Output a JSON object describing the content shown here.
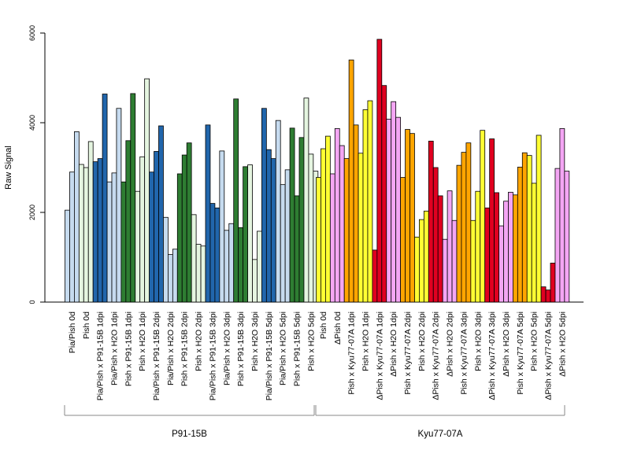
{
  "chart_data": {
    "type": "bar",
    "ylabel": "Raw Signal",
    "xlabel": "",
    "ylim": [
      0,
      6000
    ],
    "yticks": [
      0,
      2000,
      4000,
      6000
    ],
    "grid": false,
    "legend": "none",
    "colors": {
      "light_blue": "#c6dbef",
      "dark_blue": "#2166ac",
      "light_green": "#e5f5e0",
      "dark_green": "#2e7d32",
      "yellow": "#ffff33",
      "pink": "#f4a6f4",
      "orange": "#ffa500",
      "red": "#e00020"
    },
    "groups": [
      {
        "label": "Pia/Pish 0d",
        "color": "light_blue",
        "values": [
          2050,
          2900,
          3800
        ]
      },
      {
        "label": "Pish 0d",
        "color": "light_green",
        "values": [
          3070,
          3000,
          3580
        ]
      },
      {
        "label": "Pia/Pish x P91-15B 1dpi",
        "color": "dark_blue",
        "values": [
          3130,
          3200,
          4640
        ]
      },
      {
        "label": "Pia/Pish x H2O 1dpi",
        "color": "light_blue",
        "values": [
          2680,
          2880,
          4320
        ]
      },
      {
        "label": "Pish x P91-15B 1dpi",
        "color": "dark_green",
        "values": [
          2680,
          3600,
          4650
        ]
      },
      {
        "label": "Pish x H2O 1dpi",
        "color": "light_green",
        "values": [
          2470,
          3240,
          4980
        ]
      },
      {
        "label": "Pia/Pish x P91-15B 2dpi",
        "color": "dark_blue",
        "values": [
          2900,
          3360,
          3930
        ]
      },
      {
        "label": "Pia/Pish x H2O 2dpi",
        "color": "light_blue",
        "values": [
          1890,
          1060,
          1180
        ]
      },
      {
        "label": "Pish x P91-15B 2dpi",
        "color": "dark_green",
        "values": [
          2860,
          3280,
          3550
        ]
      },
      {
        "label": "Pish x H2O 2dpi",
        "color": "light_green",
        "values": [
          1950,
          1290,
          1250
        ]
      },
      {
        "label": "Pia/Pish x P91-15B 3dpi",
        "color": "dark_blue",
        "values": [
          3950,
          2200,
          2100
        ]
      },
      {
        "label": "Pia/Pish x H2O 3dpi",
        "color": "light_blue",
        "values": [
          3370,
          1600,
          1750
        ]
      },
      {
        "label": "Pish x P91-15B 3dpi",
        "color": "dark_green",
        "values": [
          4530,
          1660,
          3020
        ]
      },
      {
        "label": "Pish x H2O 3dpi",
        "color": "light_green",
        "values": [
          3060,
          950,
          1580
        ]
      },
      {
        "label": "Pia/Pish x P91-15B 5dpi",
        "color": "dark_blue",
        "values": [
          4320,
          3400,
          3200
        ]
      },
      {
        "label": "Pia/Pish x H2O 5dpi",
        "color": "light_blue",
        "values": [
          4050,
          2620,
          2950
        ]
      },
      {
        "label": "Pish x P91-15B 5dpi",
        "color": "dark_green",
        "values": [
          3880,
          2370,
          3670
        ]
      },
      {
        "label": "Pish x H2O 5dpi",
        "color": "light_green",
        "values": [
          4550,
          3300,
          2920
        ]
      },
      {
        "label": "Pish 0d",
        "color": "yellow",
        "values": [
          2780,
          3420,
          3700
        ]
      },
      {
        "label": "ΔPish 0d",
        "color": "pink",
        "values": [
          2860,
          3870,
          3490
        ]
      },
      {
        "label": "Pish x Kyu77-07A 1dpi",
        "color": "orange",
        "values": [
          3200,
          5400,
          3950
        ]
      },
      {
        "label": "Pish x H2O 1dpi",
        "color": "yellow",
        "values": [
          3320,
          4290,
          4490
        ]
      },
      {
        "label": "ΔPish x Kyu77-07A 1dpi",
        "color": "red",
        "values": [
          1160,
          5860,
          4830
        ]
      },
      {
        "label": "ΔPish x H2O 1dpi",
        "color": "pink",
        "values": [
          4080,
          4470,
          4120
        ]
      },
      {
        "label": "Pish x Kyu77-07A 2dpi",
        "color": "orange",
        "values": [
          2780,
          3850,
          3760
        ]
      },
      {
        "label": "Pish x H2O 2dpi",
        "color": "yellow",
        "values": [
          1450,
          1840,
          2030
        ]
      },
      {
        "label": "ΔPish x Kyu77-07A 2dpi",
        "color": "red",
        "values": [
          3590,
          3000,
          2370
        ]
      },
      {
        "label": "ΔPish x H2O 2dpi",
        "color": "pink",
        "values": [
          1400,
          2480,
          1820
        ]
      },
      {
        "label": "Pish x Kyu77-07A 3dpi",
        "color": "orange",
        "values": [
          3050,
          3340,
          3550
        ]
      },
      {
        "label": "Pish x H2O 3dpi",
        "color": "yellow",
        "values": [
          1820,
          2470,
          3830
        ]
      },
      {
        "label": "ΔPish x Kyu77-07A 3dpi",
        "color": "red",
        "values": [
          2100,
          3640,
          2440
        ]
      },
      {
        "label": "ΔPish x H2O 3dpi",
        "color": "pink",
        "values": [
          1700,
          2250,
          2450
        ]
      },
      {
        "label": "Pish x Kyu77-07A 5dpi",
        "color": "orange",
        "values": [
          2390,
          3010,
          3330
        ]
      },
      {
        "label": "Pish x H2O 5dpi",
        "color": "yellow",
        "values": [
          3270,
          2650,
          3720
        ]
      },
      {
        "label": "ΔPish x Kyu77-07A 5dpi",
        "color": "red",
        "values": [
          340,
          270,
          870
        ]
      },
      {
        "label": "ΔPish x H2O 5dpi",
        "color": "pink",
        "values": [
          2980,
          3870,
          2920
        ]
      }
    ],
    "brackets": [
      {
        "label": "P91-15B",
        "from_group": 0,
        "to_group": 17
      },
      {
        "label": "Kyu77-07A",
        "from_group": 18,
        "to_group": 35
      }
    ]
  }
}
